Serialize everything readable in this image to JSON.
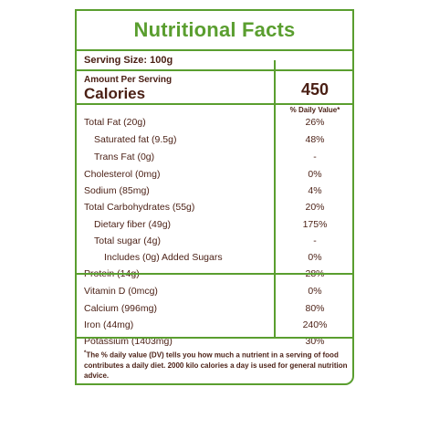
{
  "label": {
    "title": "Nutritional Facts",
    "serving_size": "Serving Size: 100g",
    "amount_per_serving": "Amount Per Serving",
    "calories_label": "Calories",
    "calories_value": "450",
    "daily_value_header": "% Daily Value*",
    "nutrients": [
      {
        "name": "Total Fat (20g)",
        "value": "26%"
      },
      {
        "name": "Saturated fat (9.5g)",
        "value": "48%"
      },
      {
        "name": "Trans Fat (0g)",
        "value": "-"
      },
      {
        "name": "Cholesterol (0mg)",
        "value": "0%"
      },
      {
        "name": "Sodium (85mg)",
        "value": "4%"
      },
      {
        "name": "Total Carbohydrates  (55g)",
        "value": "20%"
      },
      {
        "name": "Dietary fiber (49g)",
        "value": "175%"
      },
      {
        "name": "Total sugar (4g)",
        "value": "-"
      },
      {
        "name": "Includes (0g) Added Sugars",
        "value": "0%"
      },
      {
        "name": "Protein (14g)",
        "value": "28%"
      }
    ],
    "minerals": [
      {
        "name": "Vitamin D (0mcg)",
        "value": "0%"
      },
      {
        "name": "Calcium (996mg)",
        "value": "80%"
      },
      {
        "name": "Iron (44mg)",
        "value": "240%"
      },
      {
        "name": "Potassium (1403mg)",
        "value": "30%"
      }
    ],
    "footnote_marker": "*",
    "footnote": "The % daily value (DV) tells you how much a nutrient in a serving of food contributes a daily diet. 2000 kilo calories a day is used for general nutrition advice."
  },
  "colors": {
    "accent_green": "#5a9e2f",
    "text_brown": "#4a1f14"
  }
}
